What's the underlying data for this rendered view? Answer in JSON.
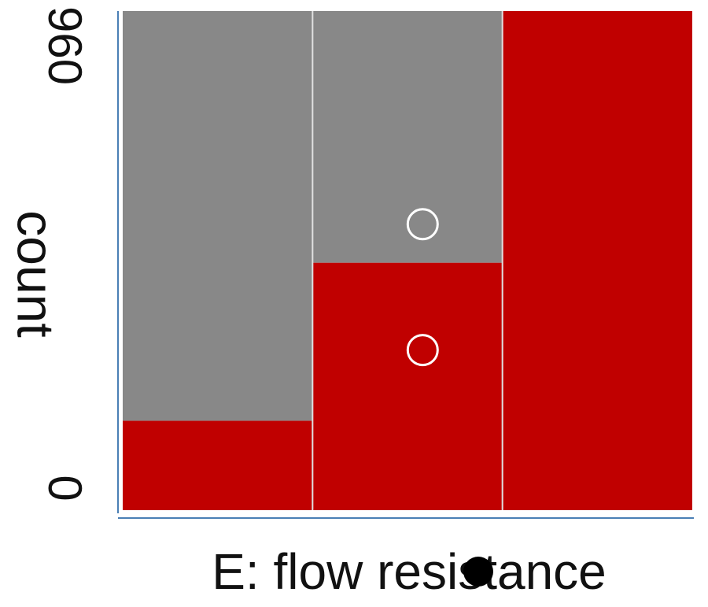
{
  "chart_data": {
    "type": "bar",
    "categories": [
      "",
      "",
      ""
    ],
    "series": [
      {
        "color": "#c00000",
        "values": [
          172,
          476,
          960
        ]
      },
      {
        "color": "#888888",
        "values": [
          788,
          484,
          0
        ]
      }
    ],
    "ylabel": "count",
    "xlabel": "E: flow resistance",
    "ylim": [
      0,
      960
    ],
    "y_ticks": [
      "0",
      "960"
    ],
    "markers": [
      {
        "category": 1,
        "value": 550,
        "style": "hollow-circle",
        "color": "#ffffff"
      },
      {
        "category": 1,
        "value": 308,
        "style": "hollow-circle",
        "color": "#ffffff"
      }
    ],
    "grid": false,
    "legend": "none"
  }
}
